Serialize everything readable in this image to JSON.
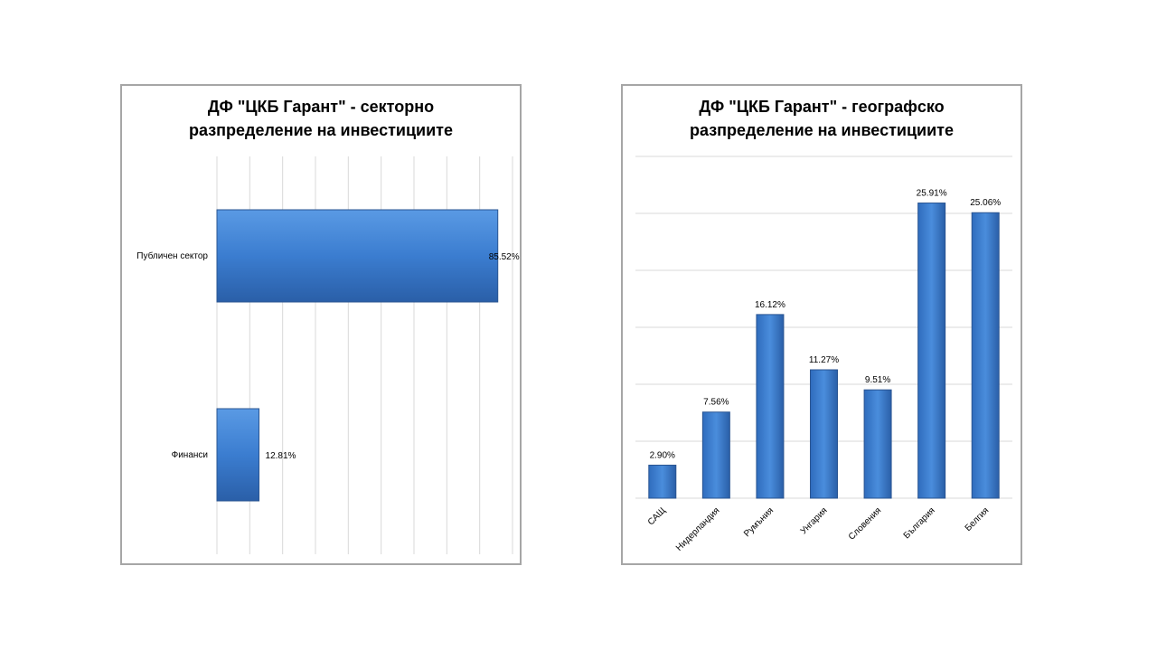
{
  "chart_data": [
    {
      "type": "bar",
      "orientation": "horizontal",
      "title_lines": [
        "ДФ \"ЦКБ Гарант\" - секторно",
        "разпределение на инвестициите"
      ],
      "categories": [
        "Публичен сектор",
        "Финанси"
      ],
      "values": [
        85.52,
        12.81
      ],
      "value_labels": [
        "85.52%",
        "12.81%"
      ],
      "xlim": [
        0,
        90
      ],
      "grid": "vertical",
      "bar_color": "#3b7dd0"
    },
    {
      "type": "bar",
      "orientation": "vertical",
      "title_lines": [
        "ДФ \"ЦКБ Гарант\" - географско",
        "разпределение на инвестициите"
      ],
      "categories": [
        "САЩ",
        "Нидерландия",
        "Румъния",
        "Унгария",
        "Словения",
        "България",
        "Белгия"
      ],
      "values": [
        2.9,
        7.56,
        16.12,
        11.27,
        9.51,
        25.91,
        25.06
      ],
      "value_labels": [
        "2.90%",
        "7.56%",
        "16.12%",
        "11.27%",
        "9.51%",
        "25.91%",
        "25.06%"
      ],
      "ylim": [
        0,
        30
      ],
      "grid": "horizontal",
      "bar_color": "#3b7dd0"
    }
  ]
}
